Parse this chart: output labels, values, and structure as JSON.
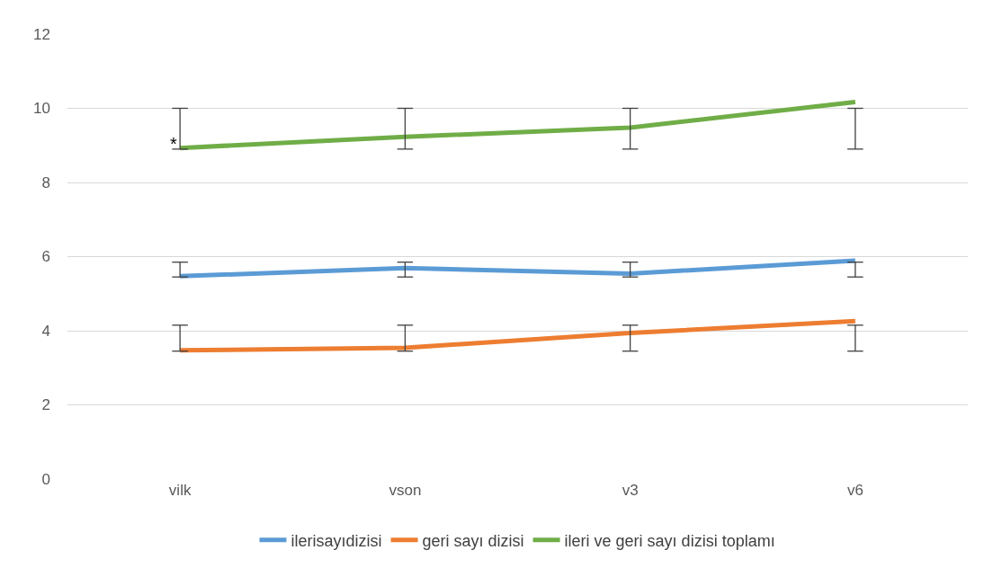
{
  "chart_data": {
    "type": "line",
    "categories": [
      "vilk",
      "vson",
      "v3",
      "v6"
    ],
    "series": [
      {
        "name": "ilerisayıdizisi",
        "color": "#5b9bd5",
        "values": [
          5.47,
          5.69,
          5.54,
          5.89
        ],
        "errors": [
          [
            5.45,
            5.85
          ],
          [
            5.45,
            5.85
          ],
          [
            5.45,
            5.85
          ],
          [
            5.45,
            5.85
          ]
        ]
      },
      {
        "name": "geri sayı dizisi",
        "color": "#ed7d31",
        "values": [
          3.47,
          3.54,
          3.94,
          4.26
        ],
        "errors": [
          [
            3.45,
            4.15
          ],
          [
            3.45,
            4.15
          ],
          [
            3.45,
            4.15
          ],
          [
            3.45,
            4.15
          ]
        ]
      },
      {
        "name": "ileri ve geri sayı dizisi toplamı",
        "color": "#70ad47",
        "values": [
          8.93,
          9.23,
          9.48,
          10.17
        ],
        "errors": [
          [
            8.9,
            10.0
          ],
          [
            8.9,
            10.0
          ],
          [
            8.9,
            10.0
          ],
          [
            8.9,
            10.0
          ]
        ]
      }
    ],
    "annotations": [
      {
        "text": "*",
        "x": "vilk",
        "y": 8.93
      }
    ],
    "ylim": [
      0,
      12
    ],
    "yticks": [
      0,
      2,
      4,
      6,
      8,
      10,
      12
    ],
    "grid": "y",
    "legend": "bottom",
    "marker": "none",
    "line_style": "solid"
  }
}
